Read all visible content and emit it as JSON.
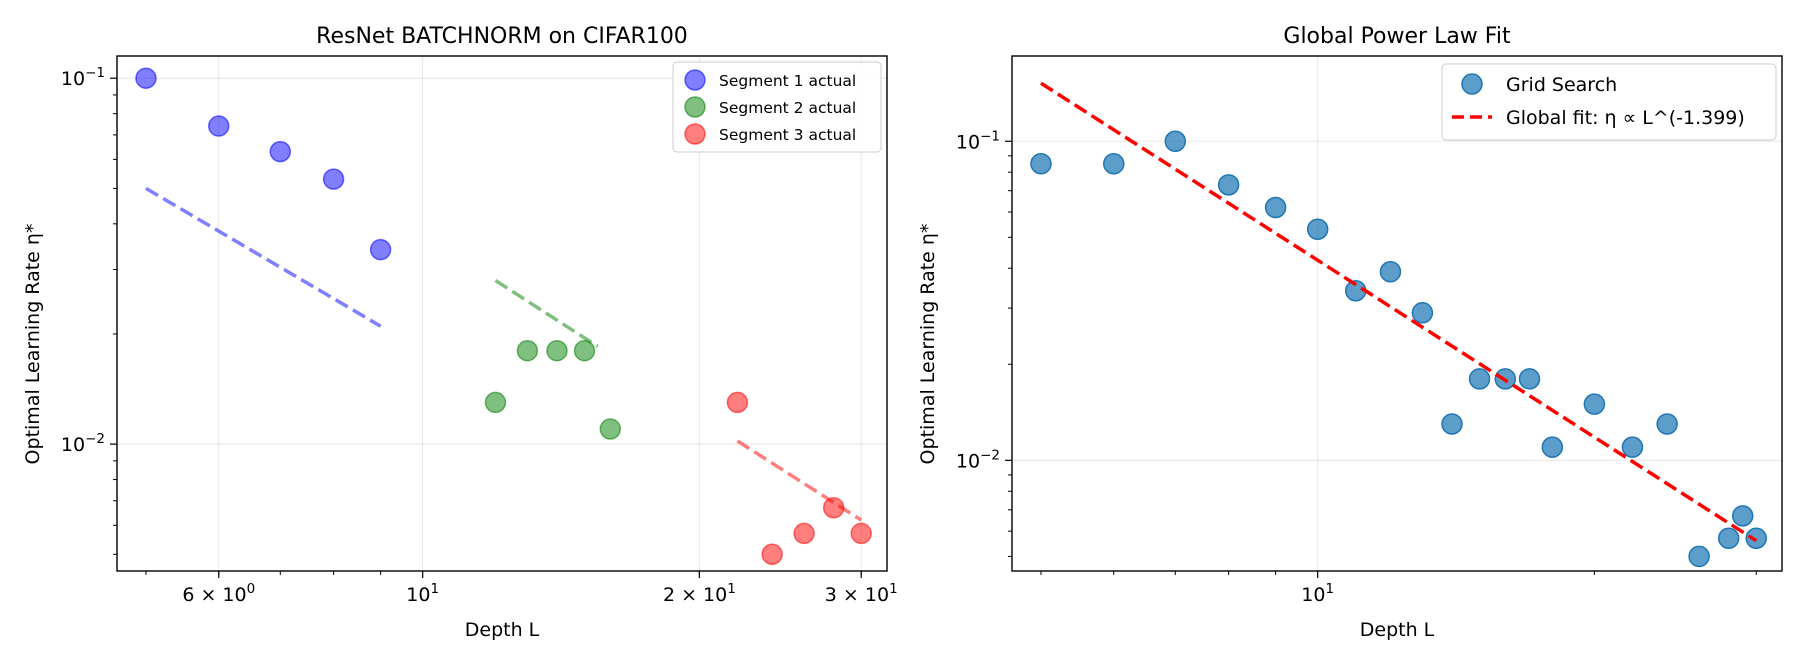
{
  "chart_data": [
    {
      "type": "scatter",
      "title": "ResNet BATCHNORM on CIFAR100",
      "xlabel": "Depth L",
      "ylabel": "Optimal Learning Rate η*",
      "xscale": "log",
      "yscale": "log",
      "xlim": [
        4.65,
        32
      ],
      "ylim": [
        0.0045,
        0.115
      ],
      "xticks": [
        {
          "value": 6,
          "base": "6 × 10",
          "exp": "0"
        },
        {
          "value": 10,
          "base": "10",
          "exp": "1"
        },
        {
          "value": 20,
          "base": "2 × 10",
          "exp": "1"
        },
        {
          "value": 30,
          "base": "3 × 10",
          "exp": "1"
        }
      ],
      "yticks": [
        {
          "value": 0.1,
          "base": "10",
          "exp": "−1"
        },
        {
          "value": 0.01,
          "base": "10",
          "exp": "−2"
        }
      ],
      "grid": true,
      "legend_position": "top-right",
      "series": [
        {
          "name": "Segment 1 actual",
          "color": "#0000ff",
          "points": [
            [
              5,
              0.1
            ],
            [
              6,
              0.074
            ],
            [
              7,
              0.063
            ],
            [
              8,
              0.053
            ],
            [
              9,
              0.034
            ]
          ],
          "fit": [
            [
              5,
              0.05
            ],
            [
              9,
              0.021
            ]
          ]
        },
        {
          "name": "Segment 2 actual",
          "color": "#008000",
          "points": [
            [
              12,
              0.013
            ],
            [
              13,
              0.018
            ],
            [
              14,
              0.018
            ],
            [
              15,
              0.018
            ],
            [
              16,
              0.011
            ]
          ],
          "fit": [
            [
              12,
              0.028
            ],
            [
              15.5,
              0.0185
            ]
          ]
        },
        {
          "name": "Segment 3 actual",
          "color": "#ff0000",
          "points": [
            [
              22,
              0.013
            ],
            [
              24,
              0.005
            ],
            [
              26,
              0.0057
            ],
            [
              28,
              0.0067
            ],
            [
              30,
              0.0057
            ]
          ],
          "fit": [
            [
              22,
              0.0102
            ],
            [
              30,
              0.0062
            ]
          ]
        }
      ]
    },
    {
      "type": "scatter",
      "title": "Global Power Law Fit",
      "xlabel": "Depth L",
      "ylabel": "Optimal Learning Rate η*",
      "xscale": "log",
      "yscale": "log",
      "xlim": [
        4.65,
        32
      ],
      "ylim": [
        0.0045,
        0.185
      ],
      "xticks": [
        {
          "value": 10,
          "base": "10",
          "exp": "1"
        }
      ],
      "yticks": [
        {
          "value": 0.1,
          "base": "10",
          "exp": "−1"
        },
        {
          "value": 0.01,
          "base": "10",
          "exp": "−2"
        }
      ],
      "grid": true,
      "legend_position": "top-right",
      "series": [
        {
          "name": "Grid Search",
          "color": "#1f77b4",
          "points": [
            [
              5,
              0.085
            ],
            [
              6,
              0.085
            ],
            [
              7,
              0.1
            ],
            [
              8,
              0.073
            ],
            [
              9,
              0.062
            ],
            [
              10,
              0.053
            ],
            [
              11,
              0.034
            ],
            [
              12,
              0.039
            ],
            [
              13,
              0.029
            ],
            [
              14,
              0.013
            ],
            [
              15,
              0.018
            ],
            [
              16,
              0.018
            ],
            [
              17,
              0.018
            ],
            [
              18,
              0.011
            ],
            [
              20,
              0.015
            ],
            [
              22,
              0.011
            ],
            [
              24,
              0.013
            ],
            [
              26,
              0.005
            ],
            [
              28,
              0.0057
            ],
            [
              29,
              0.0067
            ],
            [
              30,
              0.0057
            ]
          ]
        }
      ],
      "fit": {
        "name": "Global fit: η ∝ L^(-1.399)",
        "color": "#ff0000",
        "exponent": -1.399,
        "points": [
          [
            5,
            0.152
          ],
          [
            30,
            0.0056
          ]
        ]
      }
    }
  ]
}
